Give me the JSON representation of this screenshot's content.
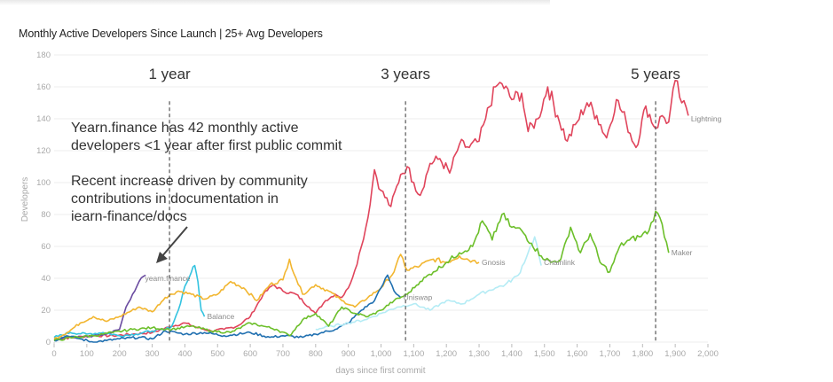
{
  "header": {
    "title": "Monthly Active Developers Since Launch | 25+ Avg Developers"
  },
  "chart_data": {
    "type": "line",
    "title": "Monthly Active Developers Since Launch | 25+ Avg Developers",
    "xlabel": "days since first commit",
    "ylabel": "Developers",
    "xlim": [
      0,
      2000
    ],
    "ylim": [
      0,
      180
    ],
    "grid": true,
    "x_ticks": [
      0,
      100,
      200,
      300,
      400,
      500,
      600,
      700,
      800,
      900,
      1000,
      1100,
      1200,
      1300,
      1400,
      1500,
      1600,
      1700,
      1800,
      1900,
      2000
    ],
    "x_tick_labels": [
      "0",
      "100",
      "200",
      "300",
      "400",
      "500",
      "600",
      "700",
      "800",
      "900",
      "1,000",
      "1,100",
      "1,200",
      "1,300",
      "1,400",
      "1,500",
      "1,600",
      "1,700",
      "1,800",
      "1,900",
      "2,000"
    ],
    "y_ticks": [
      0,
      20,
      40,
      60,
      80,
      100,
      120,
      140,
      160,
      180
    ],
    "y_tick_labels": [
      "0",
      "20",
      "40",
      "60",
      "80",
      "100",
      "120",
      "140",
      "160",
      "180"
    ],
    "reference_lines": [
      {
        "label": "1 year",
        "x": 353
      },
      {
        "label": "3 years",
        "x": 1075
      },
      {
        "label": "5 years",
        "x": 1840
      }
    ],
    "annotations": [
      {
        "text": "Yearn.finance has 42 monthly active",
        "line": 1
      },
      {
        "text": "developers <1 year after first public commit",
        "line": 2
      },
      {
        "text": "Recent increase driven by community",
        "line": 3
      },
      {
        "text": "contributions in documentation in",
        "line": 4
      },
      {
        "text": "iearn-finance/docs",
        "line": 5
      }
    ],
    "series": [
      {
        "name": "Lightning",
        "color": "#e0455c",
        "label": "Lightning",
        "x": [
          0,
          60,
          120,
          180,
          240,
          300,
          330,
          360,
          400,
          440,
          480,
          520,
          560,
          600,
          640,
          670,
          700,
          740,
          780,
          800,
          830,
          860,
          880,
          900,
          920,
          940,
          960,
          980,
          1000,
          1030,
          1060,
          1080,
          1100,
          1120,
          1150,
          1180,
          1210,
          1240,
          1270,
          1300,
          1320,
          1350,
          1370,
          1400,
          1430,
          1450,
          1480,
          1510,
          1540,
          1570,
          1600,
          1630,
          1660,
          1690,
          1720,
          1750,
          1780,
          1810,
          1840,
          1860,
          1880,
          1900,
          1920,
          1940
        ],
        "y": [
          2,
          3,
          4,
          4,
          5,
          6,
          8,
          10,
          12,
          9,
          7,
          8,
          10,
          16,
          30,
          36,
          32,
          30,
          22,
          18,
          26,
          30,
          28,
          34,
          45,
          60,
          78,
          108,
          95,
          85,
          105,
          110,
          100,
          92,
          112,
          115,
          106,
          124,
          122,
          126,
          140,
          160,
          162,
          152,
          156,
          132,
          140,
          160,
          142,
          126,
          138,
          150,
          142,
          128,
          152,
          138,
          122,
          148,
          134,
          142,
          138,
          164,
          150,
          142
        ],
        "label_at": [
          1940,
          140
        ]
      },
      {
        "name": "Yearn.finance",
        "color": "#6a4ba0",
        "label": "yearn.finance",
        "x": [
          0,
          40,
          80,
          120,
          160,
          200,
          220,
          240,
          260,
          280
        ],
        "y": [
          2,
          3,
          3,
          4,
          5,
          8,
          22,
          30,
          38,
          42
        ],
        "label_at": [
          270,
          40
        ]
      },
      {
        "name": "Balancer",
        "color": "#33c3e0",
        "label": "Balance",
        "x": [
          0,
          50,
          100,
          150,
          200,
          250,
          300,
          340,
          360,
          380,
          400,
          420,
          430,
          440,
          450,
          460
        ],
        "y": [
          3,
          6,
          5,
          6,
          4,
          5,
          7,
          8,
          10,
          20,
          35,
          44,
          48,
          38,
          20,
          16
        ],
        "label_at": [
          460,
          16
        ]
      },
      {
        "name": "Gnosis",
        "color": "#f2b630",
        "label": "Gnosis",
        "x": [
          0,
          40,
          80,
          120,
          160,
          200,
          260,
          300,
          340,
          380,
          420,
          460,
          500,
          540,
          580,
          620,
          660,
          700,
          720,
          740,
          760,
          800,
          840,
          880,
          920,
          960,
          1000,
          1040,
          1060,
          1080,
          1120,
          1160,
          1200,
          1240,
          1280,
          1300
        ],
        "y": [
          2,
          6,
          12,
          16,
          13,
          16,
          22,
          19,
          28,
          32,
          30,
          27,
          30,
          38,
          34,
          26,
          36,
          39,
          52,
          40,
          30,
          36,
          32,
          26,
          22,
          28,
          34,
          44,
          55,
          45,
          48,
          52,
          50,
          54,
          51,
          50
        ],
        "label_at": [
          1300,
          50
        ]
      },
      {
        "name": "Uniswap",
        "color": "#1f6fb0",
        "label": "Uniswap",
        "x": [
          0,
          40,
          80,
          120,
          160,
          200,
          260,
          300,
          340,
          400,
          460,
          520,
          600,
          660,
          700,
          760,
          800,
          860,
          900,
          940,
          980,
          1000,
          1020,
          1040,
          1060
        ],
        "y": [
          1,
          4,
          2,
          0,
          1,
          2,
          3,
          2,
          7,
          5,
          6,
          4,
          6,
          3,
          4,
          3,
          5,
          8,
          12,
          20,
          26,
          34,
          42,
          32,
          28
        ],
        "label_at": [
          1060,
          28
        ]
      },
      {
        "name": "Chainlink",
        "color": "#b5ecf5",
        "label": "Chainlink",
        "x": [
          800,
          850,
          900,
          950,
          1000,
          1050,
          1100,
          1150,
          1200,
          1250,
          1300,
          1350,
          1380,
          1420,
          1450,
          1470,
          1490
        ],
        "y": [
          8,
          10,
          12,
          14,
          18,
          22,
          24,
          20,
          26,
          24,
          30,
          34,
          36,
          42,
          56,
          66,
          48
        ],
        "label_at": [
          1490,
          50
        ]
      },
      {
        "name": "Maker",
        "color": "#6cbf2a",
        "label": "Maker",
        "x": [
          0,
          60,
          120,
          180,
          240,
          300,
          360,
          420,
          480,
          540,
          600,
          640,
          680,
          720,
          760,
          800,
          840,
          880,
          920,
          960,
          1000,
          1040,
          1080,
          1120,
          1160,
          1200,
          1240,
          1280,
          1310,
          1340,
          1370,
          1400,
          1430,
          1460,
          1490,
          1520,
          1550,
          1580,
          1610,
          1640,
          1670,
          1700,
          1730,
          1760,
          1790,
          1820,
          1840,
          1860,
          1880
        ],
        "y": [
          1,
          3,
          4,
          6,
          8,
          9,
          8,
          10,
          7,
          6,
          12,
          10,
          8,
          4,
          14,
          18,
          10,
          22,
          18,
          16,
          20,
          26,
          30,
          38,
          44,
          50,
          56,
          60,
          76,
          64,
          80,
          72,
          70,
          62,
          54,
          50,
          52,
          72,
          56,
          68,
          50,
          44,
          60,
          64,
          66,
          70,
          82,
          74,
          56
        ],
        "label_at": [
          1880,
          56
        ]
      }
    ]
  }
}
